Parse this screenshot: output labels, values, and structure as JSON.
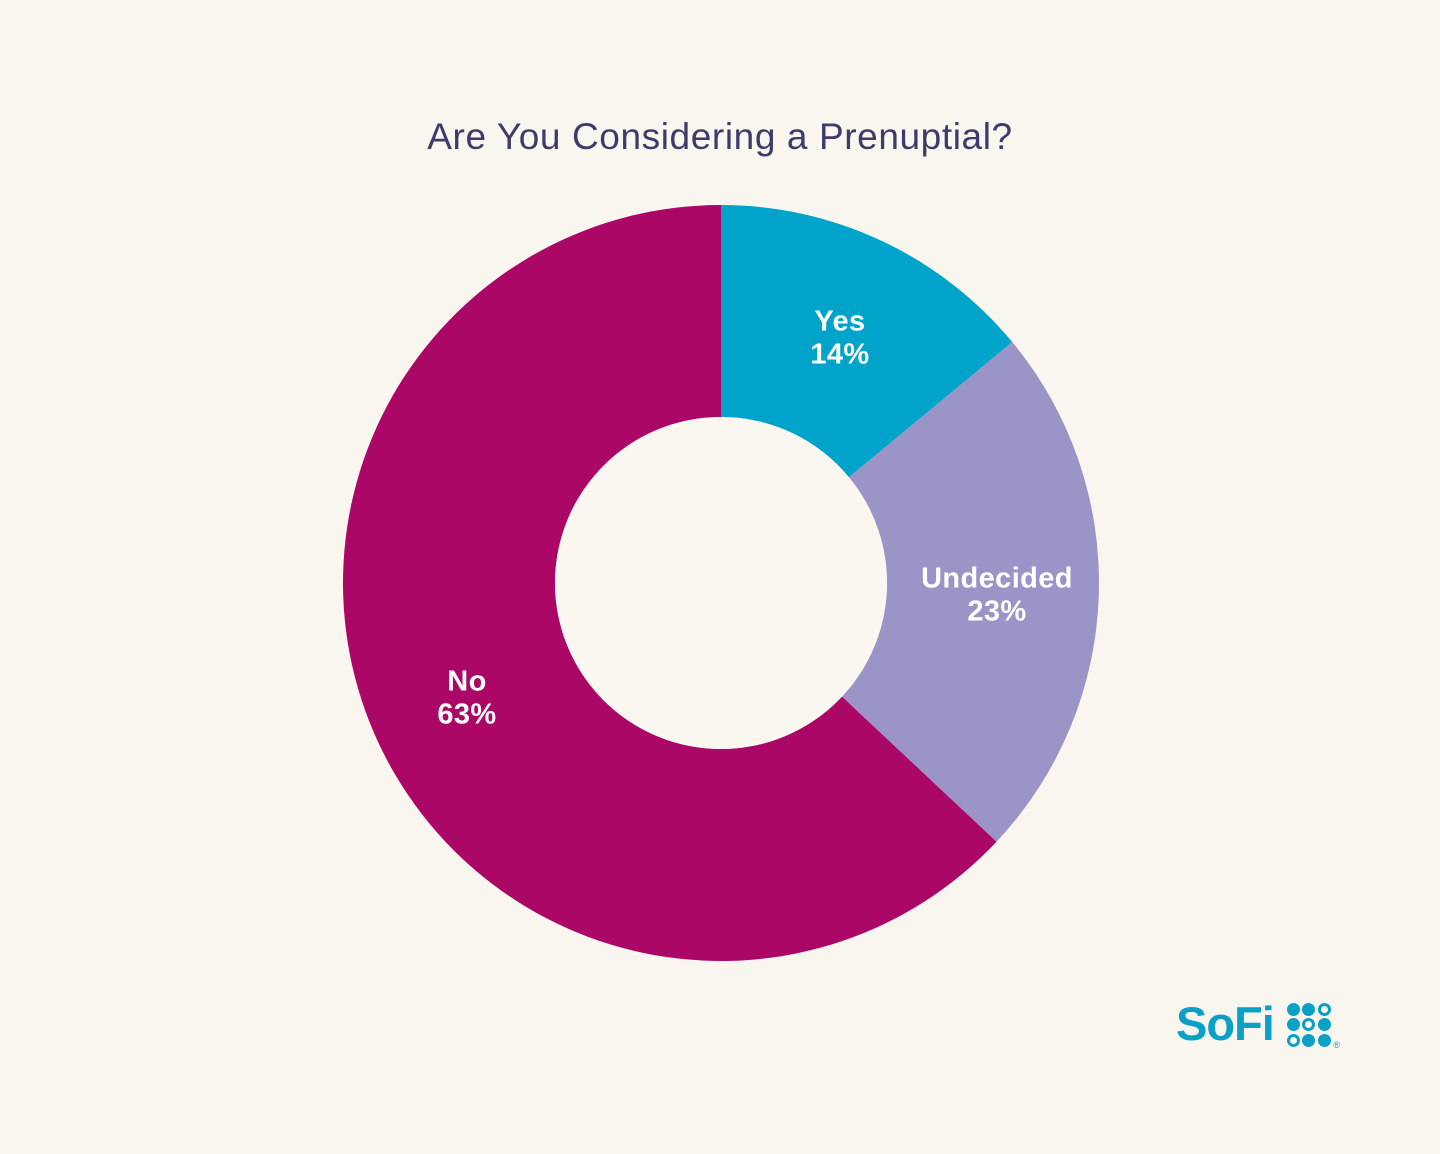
{
  "page": {
    "background_color": "#F9F6EF"
  },
  "title": {
    "text": "Are You Considering a Prenuptial?",
    "color": "#3E3A6B"
  },
  "chart_data": {
    "type": "pie",
    "subtype": "donut",
    "title": "Are You Considering a Prenuptial?",
    "categories": [
      "Yes",
      "Undecided",
      "No"
    ],
    "values": [
      14,
      23,
      63
    ],
    "unit": "%",
    "colors": [
      "#00A3C9",
      "#9B94C6",
      "#AA0767"
    ],
    "start_angle_deg": 0,
    "direction": "clockwise",
    "inner_radius_ratio": 0.44,
    "hole_color": "#FAF7F1",
    "label_color": "#FFFFFF",
    "legend": "none",
    "slices": [
      {
        "label": "Yes",
        "value": 14,
        "pct": "14%"
      },
      {
        "label": "Undecided",
        "value": 23,
        "pct": "23%"
      },
      {
        "label": "No",
        "value": 63,
        "pct": "63%"
      }
    ]
  },
  "logo": {
    "wordmark": "SoFi",
    "color": "#0BA0C5",
    "registered_mark": "®",
    "dot_grid": [
      "filled",
      "filled",
      "ring",
      "filled",
      "ring",
      "filled",
      "ring",
      "filled",
      "filled"
    ]
  }
}
